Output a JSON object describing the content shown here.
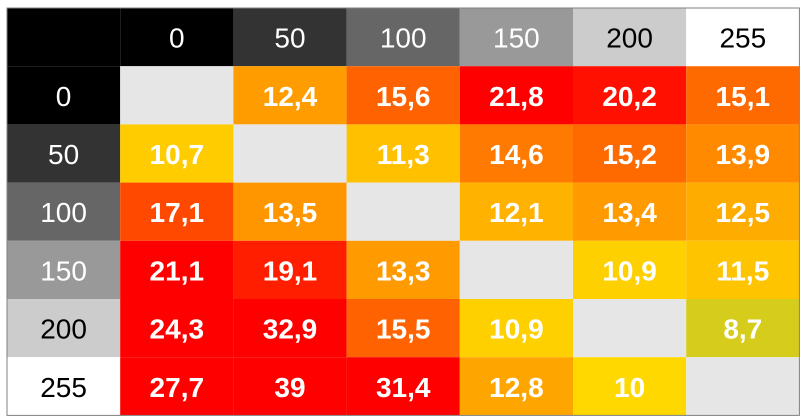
{
  "chart_data": {
    "type": "heatmap",
    "title": "",
    "xlabel": "",
    "ylabel": "",
    "legend": "none",
    "grid": true,
    "x_categories": [
      "0",
      "50",
      "100",
      "150",
      "200",
      "255"
    ],
    "y_categories": [
      "0",
      "50",
      "100",
      "150",
      "200",
      "255"
    ],
    "values": [
      [
        null,
        "12,4",
        "15,6",
        "21,8",
        "20,2",
        "15,1"
      ],
      [
        "10,7",
        null,
        "11,3",
        "14,6",
        "15,2",
        "13,9"
      ],
      [
        "17,1",
        "13,5",
        null,
        "12,1",
        "13,4",
        "12,5"
      ],
      [
        "21,1",
        "19,1",
        "13,3",
        null,
        "10,9",
        "11,5"
      ],
      [
        "24,3",
        "32,9",
        "15,5",
        "10,9",
        null,
        "8,7"
      ],
      [
        "27,7",
        "39",
        "31,4",
        "12,8",
        "10",
        null
      ]
    ],
    "header_colors": [
      "#000000",
      "#333333",
      "#666666",
      "#999999",
      "#cccccc",
      "#ffffff"
    ],
    "header_text_colors": [
      "#ffffff",
      "#ffffff",
      "#ffffff",
      "#ffffff",
      "#000000",
      "#000000"
    ],
    "corner_color": "#000000",
    "diagonal_color": "#e6e6e6",
    "cell_colors": [
      [
        "#e6e6e6",
        "#ff9d00",
        "#ff6200",
        "#ff0000",
        "#ff1000",
        "#ff6a00"
      ],
      [
        "#ffcc00",
        "#e6e6e6",
        "#ffc000",
        "#ff7a00",
        "#ff6a00",
        "#ff8a00"
      ],
      [
        "#ff4800",
        "#ff9600",
        "#e6e6e6",
        "#ffb300",
        "#ff9a00",
        "#ffac00"
      ],
      [
        "#ff0000",
        "#ff1e00",
        "#ff9a00",
        "#e6e6e6",
        "#ffd000",
        "#ffc400"
      ],
      [
        "#ff0000",
        "#ff0000",
        "#ff6200",
        "#ffd000",
        "#e6e6e6",
        "#d6cc1b"
      ],
      [
        "#ff0000",
        "#ff0000",
        "#ff0000",
        "#ffa500",
        "#ffd800",
        "#e6e6e6"
      ]
    ],
    "value_text_color": "#ffffff",
    "border_color": "#808080"
  }
}
